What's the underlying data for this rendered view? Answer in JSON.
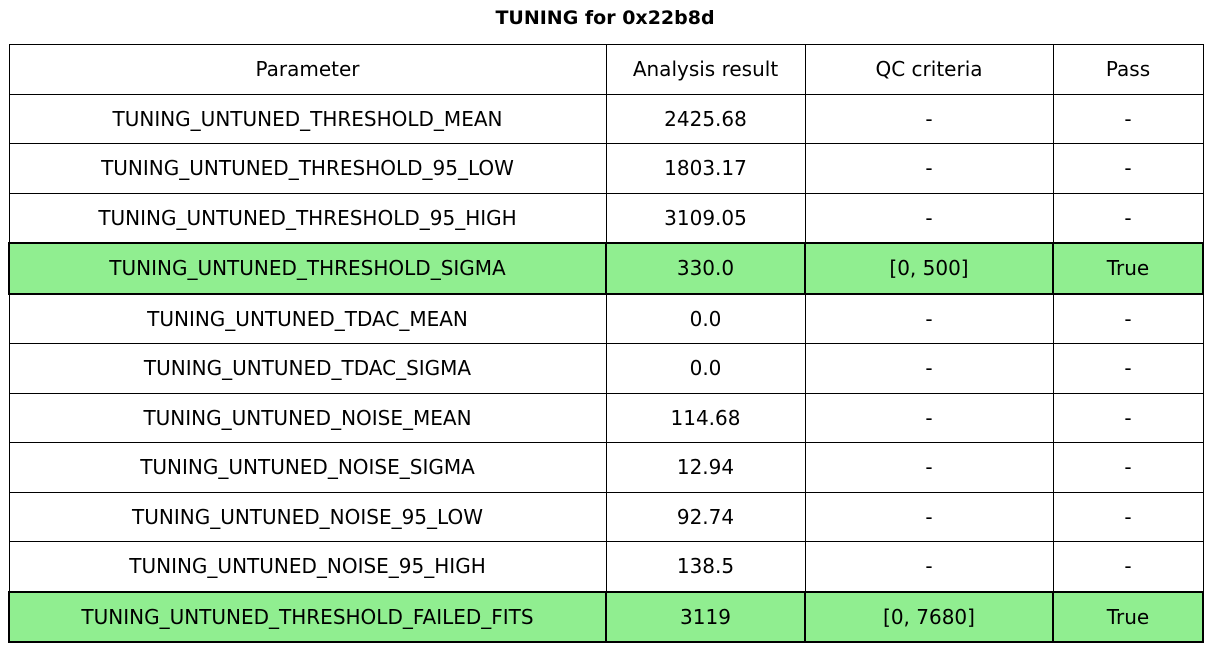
{
  "title": "TUNING for 0x22b8d",
  "colors": {
    "highlight_green": "#90EE90",
    "border": "#000000",
    "background": "#ffffff",
    "text": "#000000"
  },
  "table": {
    "headers": [
      "Parameter",
      "Analysis result",
      "QC criteria",
      "Pass"
    ],
    "rows": [
      {
        "parameter": "TUNING_UNTUNED_THRESHOLD_MEAN",
        "result": "2425.68",
        "qc": "-",
        "pass": "-",
        "highlight": false
      },
      {
        "parameter": "TUNING_UNTUNED_THRESHOLD_95_LOW",
        "result": "1803.17",
        "qc": "-",
        "pass": "-",
        "highlight": false
      },
      {
        "parameter": "TUNING_UNTUNED_THRESHOLD_95_HIGH",
        "result": "3109.05",
        "qc": "-",
        "pass": "-",
        "highlight": false
      },
      {
        "parameter": "TUNING_UNTUNED_THRESHOLD_SIGMA",
        "result": "330.0",
        "qc": "[0, 500]",
        "pass": "True",
        "highlight": true
      },
      {
        "parameter": "TUNING_UNTUNED_TDAC_MEAN",
        "result": "0.0",
        "qc": "-",
        "pass": "-",
        "highlight": false
      },
      {
        "parameter": "TUNING_UNTUNED_TDAC_SIGMA",
        "result": "0.0",
        "qc": "-",
        "pass": "-",
        "highlight": false
      },
      {
        "parameter": "TUNING_UNTUNED_NOISE_MEAN",
        "result": "114.68",
        "qc": "-",
        "pass": "-",
        "highlight": false
      },
      {
        "parameter": "TUNING_UNTUNED_NOISE_SIGMA",
        "result": "12.94",
        "qc": "-",
        "pass": "-",
        "highlight": false
      },
      {
        "parameter": "TUNING_UNTUNED_NOISE_95_LOW",
        "result": "92.74",
        "qc": "-",
        "pass": "-",
        "highlight": false
      },
      {
        "parameter": "TUNING_UNTUNED_NOISE_95_HIGH",
        "result": "138.5",
        "qc": "-",
        "pass": "-",
        "highlight": false
      },
      {
        "parameter": "TUNING_UNTUNED_THRESHOLD_FAILED_FITS",
        "result": "3119",
        "qc": "[0, 7680]",
        "pass": "True",
        "highlight": true
      }
    ]
  },
  "chart_data": {
    "type": "table",
    "title": "TUNING for 0x22b8d",
    "columns": [
      "Parameter",
      "Analysis result",
      "QC criteria",
      "Pass"
    ],
    "rows": [
      [
        "TUNING_UNTUNED_THRESHOLD_MEAN",
        "2425.68",
        "-",
        "-"
      ],
      [
        "TUNING_UNTUNED_THRESHOLD_95_LOW",
        "1803.17",
        "-",
        "-"
      ],
      [
        "TUNING_UNTUNED_THRESHOLD_95_HIGH",
        "3109.05",
        "-",
        "-"
      ],
      [
        "TUNING_UNTUNED_THRESHOLD_SIGMA",
        "330.0",
        "[0, 500]",
        "True"
      ],
      [
        "TUNING_UNTUNED_TDAC_MEAN",
        "0.0",
        "-",
        "-"
      ],
      [
        "TUNING_UNTUNED_TDAC_SIGMA",
        "0.0",
        "-",
        "-"
      ],
      [
        "TUNING_UNTUNED_NOISE_MEAN",
        "114.68",
        "-",
        "-"
      ],
      [
        "TUNING_UNTUNED_NOISE_SIGMA",
        "12.94",
        "-",
        "-"
      ],
      [
        "TUNING_UNTUNED_NOISE_95_LOW",
        "92.74",
        "-",
        "-"
      ],
      [
        "TUNING_UNTUNED_NOISE_95_HIGH",
        "138.5",
        "-",
        "-"
      ],
      [
        "TUNING_UNTUNED_THRESHOLD_FAILED_FITS",
        "3119",
        "[0, 7680]",
        "True"
      ]
    ],
    "highlighted_row_indices": [
      3,
      10
    ],
    "highlight_color": "#90EE90",
    "layout": {
      "grid": true,
      "border_color": "#000000",
      "title_position": "top-center"
    }
  }
}
